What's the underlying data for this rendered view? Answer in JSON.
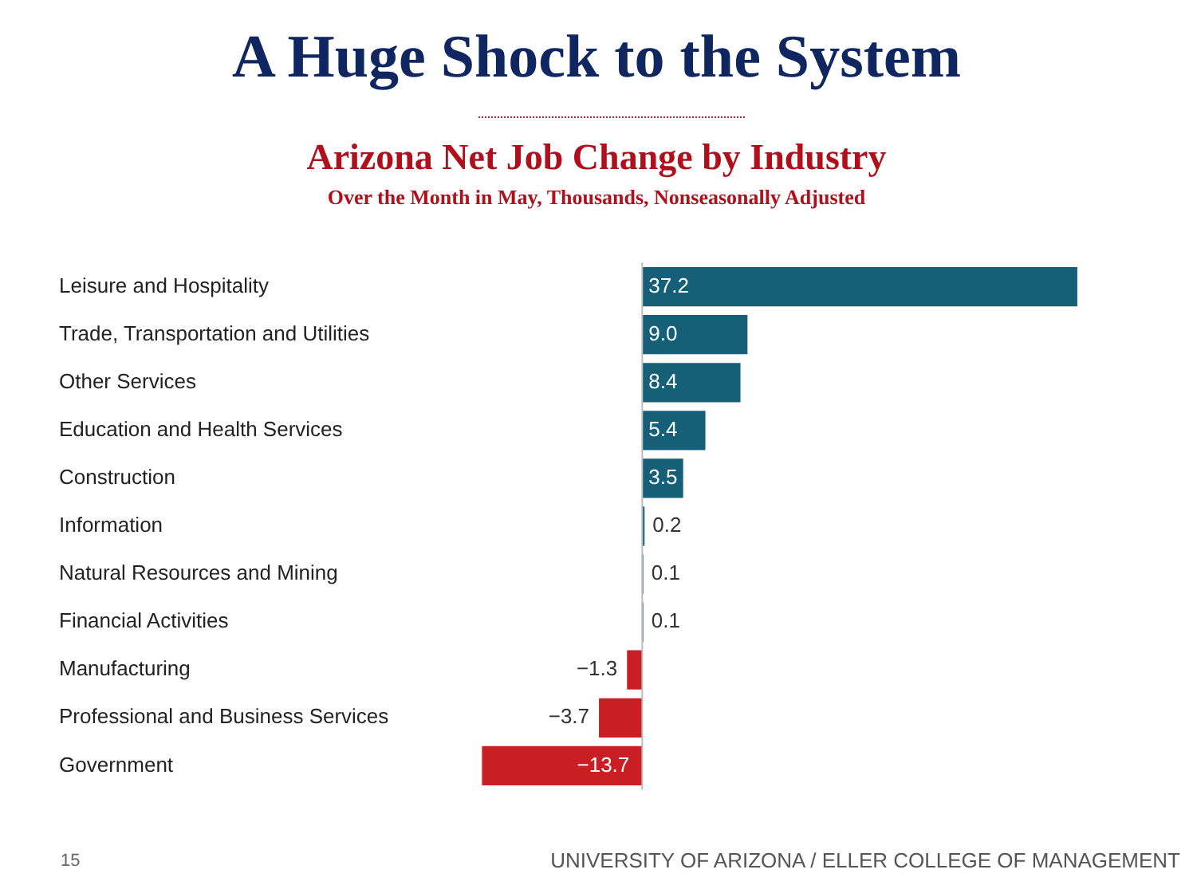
{
  "chart_data": {
    "type": "bar",
    "orientation": "horizontal",
    "title": "A Huge Shock to the System",
    "subtitle": "Arizona Net Job Change by Industry",
    "annotations": [
      "Over the Month in May, Thousands, Nonseasonally Adjusted",
      "15",
      "UNIVERSITY OF ARIZONA / ELLER COLLEGE OF MANAGEMENT"
    ],
    "categories": [
      "Leisure and Hospitality",
      "Trade, Transportation and Utilities",
      "Other Services",
      "Education and Health Services",
      "Construction",
      "Information",
      "Natural Resources and Mining",
      "Financial Activities",
      "Manufacturing",
      "Professional and Business Services",
      "Government"
    ],
    "values": [
      37.2,
      9.0,
      8.4,
      5.4,
      3.5,
      0.2,
      0.1,
      0.1,
      -1.3,
      -3.7,
      -13.7
    ],
    "value_labels": [
      "37.2",
      "9.0",
      "8.4",
      "5.4",
      "3.5",
      "0.2",
      "0.1",
      "0.1",
      "−1.3",
      "−3.7",
      "−13.7"
    ],
    "colors": [
      "#165f78",
      "#165f78",
      "#165f78",
      "#165f78",
      "#165f78",
      "#165f78",
      "#165f78",
      "#165f78",
      "#c81e24",
      "#c81e24",
      "#c81e24"
    ],
    "legend": false
  }
}
